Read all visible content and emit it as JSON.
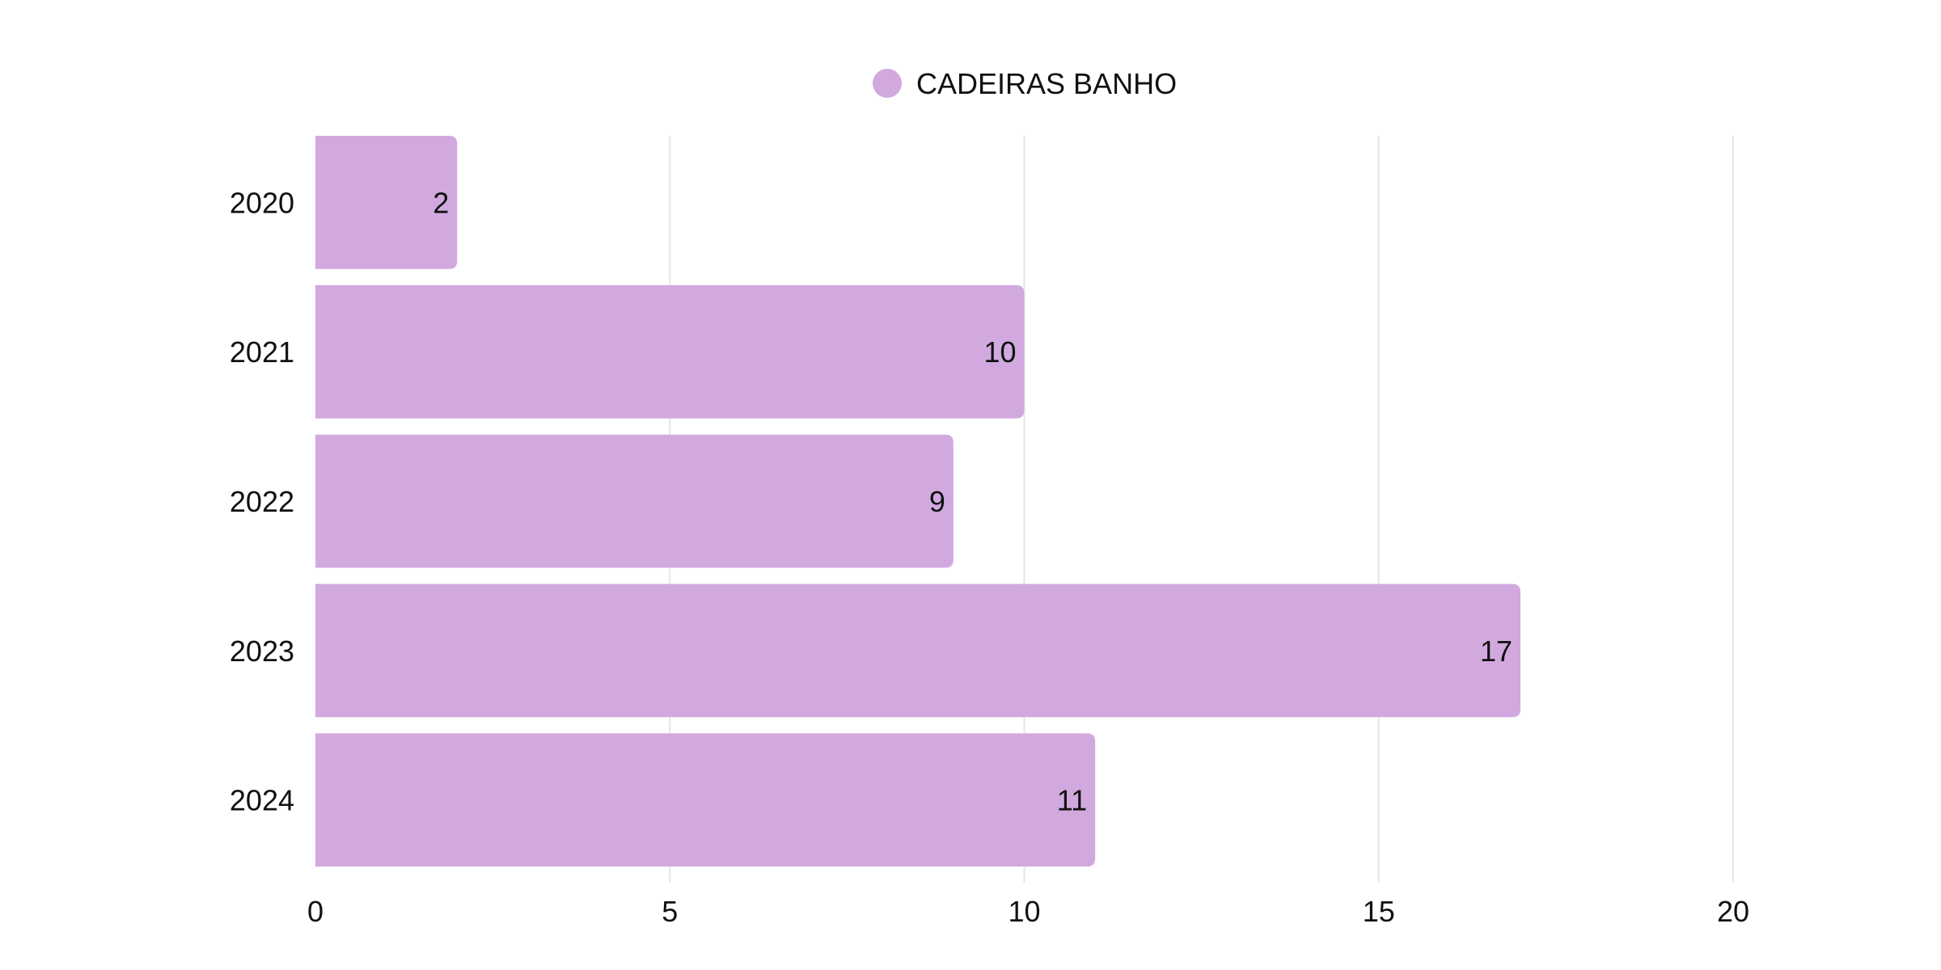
{
  "chart_data": {
    "type": "bar",
    "orientation": "horizontal",
    "categories": [
      "2020",
      "2021",
      "2022",
      "2023",
      "2024"
    ],
    "series": [
      {
        "name": "CADEIRAS BANHO",
        "values": [
          2,
          10,
          9,
          17,
          11
        ],
        "color": "#d2a9df"
      }
    ],
    "xlim": [
      0,
      20
    ],
    "x_ticks": [
      "0",
      "5",
      "10",
      "15",
      "20"
    ],
    "data_labels": [
      "2",
      "10",
      "9",
      "17",
      "11"
    ],
    "title": "",
    "xlabel": "",
    "ylabel": "",
    "grid": "vertical",
    "legend_position": "top-center"
  }
}
